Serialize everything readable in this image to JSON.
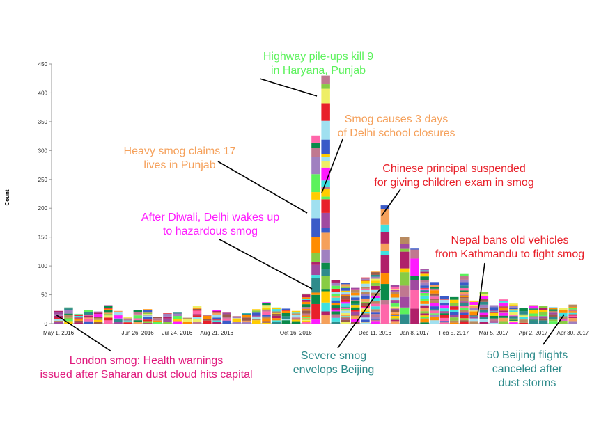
{
  "chart_data": {
    "type": "bar",
    "stacked": true,
    "ylabel": "Count",
    "xlabel": "",
    "ylim": [
      0,
      450
    ],
    "yticks": [
      0,
      50,
      100,
      150,
      200,
      250,
      300,
      350,
      400,
      450
    ],
    "grid": false,
    "x_start": "May 1, 2016",
    "x_interval": "week",
    "xtick_labels": [
      {
        "week": 0,
        "label": "May 1, 2016"
      },
      {
        "week": 8,
        "label": "Jun 26, 2016"
      },
      {
        "week": 12,
        "label": "Jul 24, 2016"
      },
      {
        "week": 16,
        "label": "Aug 21, 2016"
      },
      {
        "week": 24,
        "label": "Oct 16, 2016"
      },
      {
        "week": 32,
        "label": "Dec 11, 2016"
      },
      {
        "week": 36,
        "label": "Jan 8, 2017"
      },
      {
        "week": 40,
        "label": "Feb 5, 2017"
      },
      {
        "week": 44,
        "label": "Mar 5, 2017"
      },
      {
        "week": 48,
        "label": "Apr 2, 2017"
      },
      {
        "week": 52,
        "label": "Apr 30, 2017"
      }
    ],
    "values": [
      22,
      28,
      17,
      24,
      21,
      32,
      22,
      12,
      24,
      25,
      12,
      18,
      19,
      10,
      31,
      15,
      23,
      19,
      13,
      18,
      25,
      37,
      28,
      26,
      22,
      52,
      326,
      430,
      76,
      71,
      62,
      80,
      90,
      205,
      67,
      150,
      130,
      94,
      72,
      48,
      46,
      86,
      40,
      55,
      32,
      42,
      36,
      27,
      32,
      31,
      29,
      27,
      33
    ],
    "annotations": [
      {
        "text": [
          "Highway pile-ups kill 9",
          "in Haryana, Punjab"
        ],
        "color": "#5cf25c",
        "week": 27
      },
      {
        "text": [
          "Smog causes 3 days",
          "of Delhi school closures"
        ],
        "color": "#f5a05a",
        "week": 27
      },
      {
        "text": [
          "Heavy smog claims 17",
          "lives in Punjab"
        ],
        "color": "#f5a05a",
        "week": 26
      },
      {
        "text": [
          "Chinese principal suspended",
          "for giving children exam in smog"
        ],
        "color": "#e8202a",
        "week": 33
      },
      {
        "text": [
          "After Diwali, Delhi wakes up",
          "to hazardous smog"
        ],
        "color": "#ff1aff",
        "week": 26
      },
      {
        "text": [
          "Nepal bans old vehicles",
          "from Kathmandu to fight smog"
        ],
        "color": "#e8202a",
        "week": 43
      },
      {
        "text": [
          "London smog: Health warnings",
          "issued after Saharan dust cloud hits capital"
        ],
        "color": "#e0197d",
        "week": 0
      },
      {
        "text": [
          "Severe smog",
          "envelops Beijing"
        ],
        "color": "#2e8b8b",
        "week": 33
      },
      {
        "text": [
          "50 Beijing flights",
          "canceled after",
          "dust storms"
        ],
        "color": "#2e8b8b",
        "week": 52
      }
    ],
    "segment_palette": [
      "#ff1aff",
      "#ff8c00",
      "#a04aa0",
      "#ffcc00",
      "#f5a05a",
      "#e8202a",
      "#c07890",
      "#2e8b8b",
      "#b88a60",
      "#eeee66",
      "#b0206a",
      "#3a5ac8",
      "#5cf25c",
      "#0a8a4a",
      "#9a5a4a",
      "#40e0e0",
      "#a0e0f0",
      "#88cc44",
      "#a080c0",
      "#ff66aa"
    ]
  }
}
